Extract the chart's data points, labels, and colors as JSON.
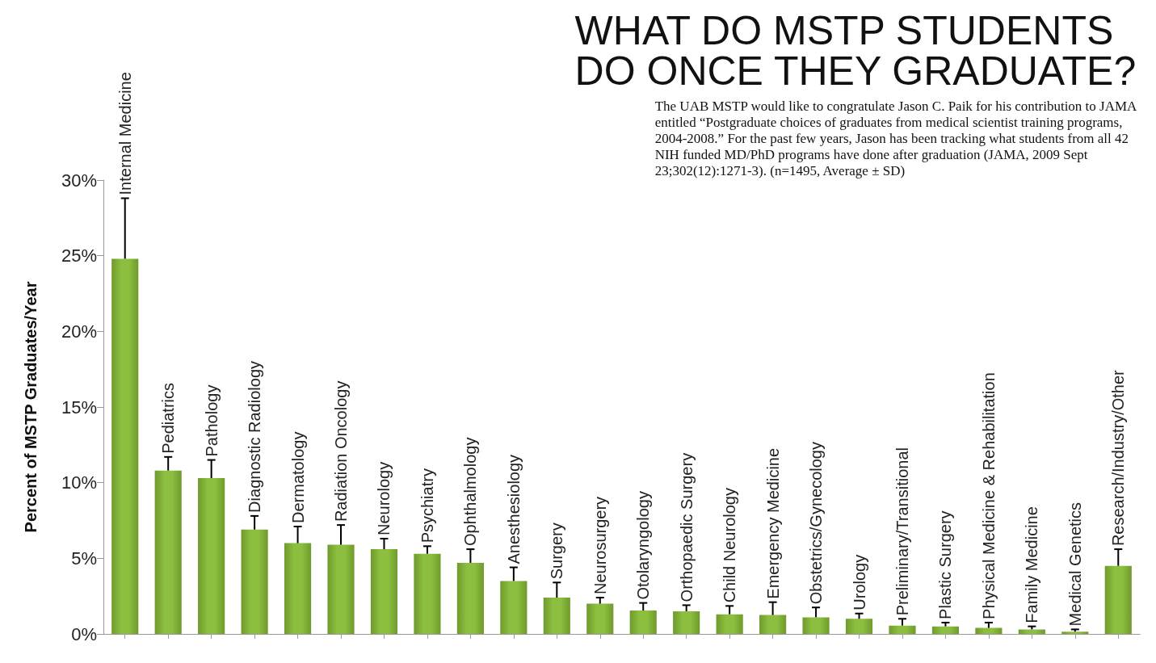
{
  "chart_data": {
    "type": "bar",
    "title": "WHAT DO MSTP STUDENTS\nDO ONCE THEY GRADUATE?",
    "subtitle": "The UAB MSTP would like to congratulate Jason C. Paik for his contribution to JAMA\nentitled “Postgraduate choices of graduates from medical scientist training programs,\n2004-2008.” For the past few years, Jason has been tracking what students from all 42\nNIH funded MD/PhD programs have done after graduation (JAMA, 2009 Sept\n23;302(12):1271-3). (n=1495, Average ± SD)",
    "ylabel": "Percent of MSTP Graduates/Year",
    "categories": [
      "Internal Medicine",
      "Pediatrics",
      "Pathology",
      "Diagnostic Radiology",
      "Dermatology",
      "Radiation Oncology",
      "Neurology",
      "Psychiatry",
      "Ophthalmology",
      "Anesthesiology",
      "Surgery",
      "Neurosurgery",
      "Otolaryngology",
      "Orthopaedic Surgery",
      "Child Neurology",
      "Emergency Medicine",
      "Obstetrics/Gynecology",
      "Urology",
      "Preliminary/Transitional",
      "Plastic Surgery",
      "Physical Medicine & Rehabilitation",
      "Family Medicine",
      "Medical Genetics",
      "Research/Industry/Other"
    ],
    "values": [
      24.8,
      10.8,
      10.3,
      6.9,
      6.0,
      5.9,
      5.6,
      5.3,
      4.7,
      3.5,
      2.4,
      2.0,
      1.55,
      1.5,
      1.3,
      1.25,
      1.1,
      1.0,
      0.55,
      0.5,
      0.4,
      0.3,
      0.15,
      4.5
    ],
    "errors": [
      [
        24.8,
        28.8
      ],
      [
        10.8,
        11.7
      ],
      [
        10.3,
        11.5
      ],
      [
        6.9,
        7.8
      ],
      [
        6.0,
        7.1
      ],
      [
        5.9,
        7.2
      ],
      [
        5.6,
        6.3
      ],
      [
        5.3,
        5.8
      ],
      [
        4.7,
        5.6
      ],
      [
        3.5,
        4.4
      ],
      [
        2.4,
        3.4
      ],
      [
        2.0,
        2.4
      ],
      [
        1.55,
        2.05
      ],
      [
        1.5,
        1.9
      ],
      [
        1.3,
        1.85
      ],
      [
        1.25,
        2.1
      ],
      [
        1.1,
        1.75
      ],
      [
        1.0,
        1.35
      ],
      [
        0.55,
        1.0
      ],
      [
        0.5,
        0.75
      ],
      [
        0.4,
        0.75
      ],
      [
        0.3,
        0.5
      ],
      [
        0.15,
        0.3
      ],
      [
        4.5,
        5.6
      ]
    ],
    "color": "#8cbf3f",
    "ylim": [
      0,
      30
    ],
    "yticks": [
      {
        "value": 0,
        "label": "0%"
      },
      {
        "value": 5,
        "label": "5%"
      },
      {
        "value": 10,
        "label": "10%"
      },
      {
        "value": 15,
        "label": "15%"
      },
      {
        "value": 20,
        "label": "20%"
      },
      {
        "value": 25,
        "label": "25%"
      },
      {
        "value": 30,
        "label": "30%"
      }
    ],
    "grid": false
  }
}
